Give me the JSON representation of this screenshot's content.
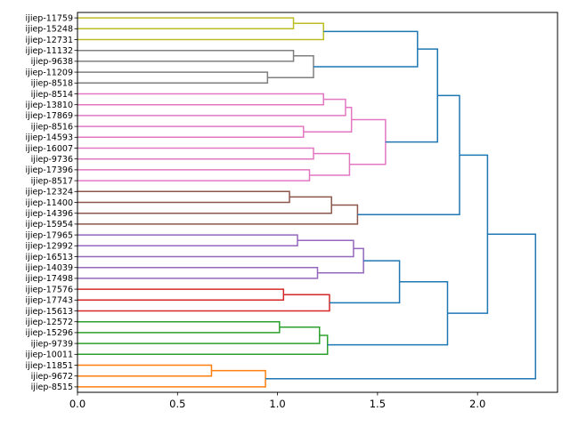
{
  "chart_data": {
    "type": "dendrogram",
    "orientation": "left",
    "xlim": [
      0,
      2.4
    ],
    "x_ticks": [
      0.0,
      0.5,
      1.0,
      1.5,
      2.0
    ],
    "x_tick_labels": [
      "0.0",
      "0.5",
      "1.0",
      "1.5",
      "2.0"
    ],
    "leaves": [
      "ijiep-11759",
      "ijiep-15248",
      "ijiep-12731",
      "ijiep-11132",
      "ijiep-9638",
      "ijiep-11209",
      "ijiep-8518",
      "ijiep-8514",
      "ijiep-13810",
      "ijiep-17869",
      "ijiep-8516",
      "ijiep-14593",
      "ijiep-16007",
      "ijiep-9736",
      "ijiep-17396",
      "ijiep-8517",
      "ijiep-12324",
      "ijiep-11400",
      "ijiep-14396",
      "ijiep-15954",
      "ijiep-17965",
      "ijiep-12992",
      "ijiep-16513",
      "ijiep-14039",
      "ijiep-17498",
      "ijiep-17576",
      "ijiep-17743",
      "ijiep-15613",
      "ijiep-12572",
      "ijiep-15296",
      "ijiep-9739",
      "ijiep-10011",
      "ijiep-11851",
      "ijiep-9672",
      "ijiep-8515"
    ],
    "cluster_colors": {
      "olive": "#bcbd22",
      "gray": "#7f7f7f",
      "pink": "#e377c2",
      "brown": "#8c564b",
      "purple": "#9467bd",
      "red": "#d62728",
      "green": "#2ca02c",
      "orange": "#ff7f0e",
      "above_threshold": "#1f77b4"
    },
    "merges": [
      {
        "a": "ijiep-11759",
        "b": "ijiep-15248",
        "height": 1.08,
        "color": "olive"
      },
      {
        "a": "m0",
        "b": "ijiep-12731",
        "height": 1.23,
        "color": "olive"
      },
      {
        "a": "ijiep-11132",
        "b": "ijiep-9638",
        "height": 1.08,
        "color": "gray"
      },
      {
        "a": "ijiep-11209",
        "b": "ijiep-8518",
        "height": 0.95,
        "color": "gray"
      },
      {
        "a": "m2",
        "b": "m3",
        "height": 1.18,
        "color": "gray"
      },
      {
        "a": "m1",
        "b": "m4",
        "height": 1.7,
        "color": "above_threshold"
      },
      {
        "a": "ijiep-8514",
        "b": "ijiep-13810",
        "height": 1.23,
        "color": "pink"
      },
      {
        "a": "m6",
        "b": "ijiep-17869",
        "height": 1.34,
        "color": "pink"
      },
      {
        "a": "ijiep-8516",
        "b": "ijiep-14593",
        "height": 1.13,
        "color": "pink"
      },
      {
        "a": "m7",
        "b": "m8",
        "height": 1.37,
        "color": "pink"
      },
      {
        "a": "ijiep-16007",
        "b": "ijiep-9736",
        "height": 1.18,
        "color": "pink"
      },
      {
        "a": "ijiep-17396",
        "b": "ijiep-8517",
        "height": 1.16,
        "color": "pink"
      },
      {
        "a": "m10",
        "b": "m11",
        "height": 1.36,
        "color": "pink"
      },
      {
        "a": "m9",
        "b": "m12",
        "height": 1.54,
        "color": "pink"
      },
      {
        "a": "m5",
        "b": "m13",
        "height": 1.8,
        "color": "above_threshold"
      },
      {
        "a": "ijiep-12324",
        "b": "ijiep-11400",
        "height": 1.06,
        "color": "brown"
      },
      {
        "a": "m15",
        "b": "ijiep-14396",
        "height": 1.27,
        "color": "brown"
      },
      {
        "a": "m16",
        "b": "ijiep-15954",
        "height": 1.4,
        "color": "brown"
      },
      {
        "a": "m14",
        "b": "m17",
        "height": 1.91,
        "color": "above_threshold"
      },
      {
        "a": "ijiep-17965",
        "b": "ijiep-12992",
        "height": 1.1,
        "color": "purple"
      },
      {
        "a": "m19",
        "b": "ijiep-16513",
        "height": 1.38,
        "color": "purple"
      },
      {
        "a": "ijiep-14039",
        "b": "ijiep-17498",
        "height": 1.2,
        "color": "purple"
      },
      {
        "a": "m20",
        "b": "m21",
        "height": 1.43,
        "color": "purple"
      },
      {
        "a": "ijiep-17576",
        "b": "ijiep-17743",
        "height": 1.03,
        "color": "red"
      },
      {
        "a": "m23",
        "b": "ijiep-15613",
        "height": 1.26,
        "color": "red"
      },
      {
        "a": "m22",
        "b": "m24",
        "height": 1.61,
        "color": "above_threshold"
      },
      {
        "a": "ijiep-12572",
        "b": "ijiep-15296",
        "height": 1.01,
        "color": "green"
      },
      {
        "a": "m26",
        "b": "ijiep-9739",
        "height": 1.21,
        "color": "green"
      },
      {
        "a": "m27",
        "b": "ijiep-10011",
        "height": 1.25,
        "color": "green"
      },
      {
        "a": "m25",
        "b": "m28",
        "height": 1.85,
        "color": "above_threshold"
      },
      {
        "a": "m18",
        "b": "m29",
        "height": 2.05,
        "color": "above_threshold"
      },
      {
        "a": "ijiep-11851",
        "b": "ijiep-9672",
        "height": 0.67,
        "color": "orange"
      },
      {
        "a": "m31",
        "b": "ijiep-8515",
        "height": 0.94,
        "color": "orange"
      },
      {
        "a": "m30",
        "b": "m32",
        "height": 2.29,
        "color": "above_threshold"
      }
    ]
  }
}
